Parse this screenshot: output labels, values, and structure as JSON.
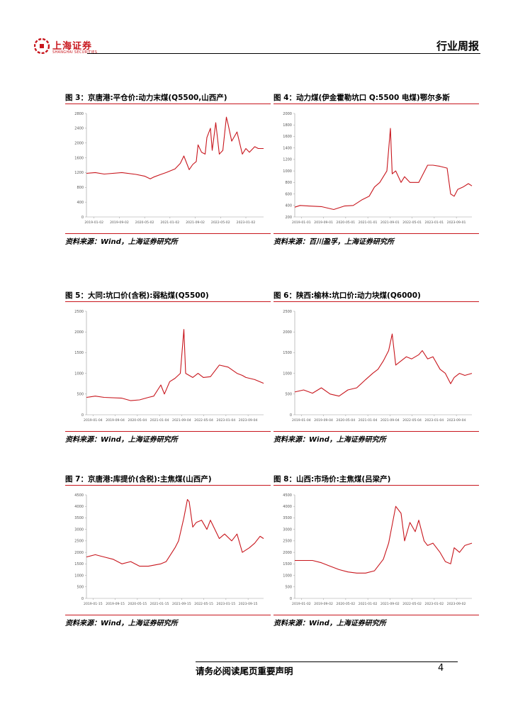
{
  "header": {
    "logo_text": "上海证券",
    "logo_subtext": "SHANGHAI SECURITIES",
    "doc_type": "行业周报",
    "brand_color": "#c8161d"
  },
  "figures": [
    {
      "title": "图 3：京唐港:平仓价:动力末煤(Q5500,山西产)",
      "source": "资料来源：Wind，上海证券研究所"
    },
    {
      "title": "图 4：动力煤(伊金霍勒坑口 Q:5500 电煤)鄂尔多斯",
      "source": "资料来源：百川盈孚，上海证券研究所"
    },
    {
      "title": "图 5：大同:坑口价(含税):弱粘煤(Q5500)",
      "source": "资料来源：Wind，上海证券研究所"
    },
    {
      "title": "图 6：陕西:榆林:坑口价:动力块煤(Q6000)",
      "source": "资料来源：Wind，上海证券研究所"
    },
    {
      "title": "图 7：京唐港:库提价(含税):主焦煤(山西产)",
      "source": "资料来源：Wind，上海证券研究所"
    },
    {
      "title": "图 8：山西:市场价:主焦煤(吕梁产)",
      "source": "资料来源：Wind，上海证券研究所"
    }
  ],
  "chart_data": [
    {
      "type": "line",
      "title": "京唐港:平仓价:动力末煤(Q5500,山西产)",
      "ylim": [
        0,
        2800
      ],
      "yticks": [
        "2800",
        "2400",
        "2000",
        "1600",
        "1200",
        "800",
        "400",
        "0"
      ],
      "xticks": [
        "2019-01-02",
        "2019-09-02",
        "2020-05-02",
        "2021-01-02",
        "2021-09-02",
        "2022-05-02",
        "2023-01-02"
      ],
      "series": [
        {
          "name": "价格",
          "color": "#c8161d",
          "x": [
            0,
            0.05,
            0.1,
            0.2,
            0.28,
            0.33,
            0.36,
            0.38,
            0.42,
            0.45,
            0.5,
            0.53,
            0.55,
            0.58,
            0.6,
            0.62,
            0.63,
            0.65,
            0.67,
            0.68,
            0.7,
            0.71,
            0.73,
            0.75,
            0.77,
            0.79,
            0.8,
            0.82,
            0.85,
            0.88,
            0.9,
            0.92,
            0.95,
            0.97,
            1.0
          ],
          "y": [
            1180,
            1200,
            1160,
            1200,
            1150,
            1100,
            1030,
            1080,
            1150,
            1200,
            1300,
            1450,
            1650,
            1280,
            1420,
            1500,
            1950,
            1750,
            1700,
            2150,
            2400,
            1800,
            2550,
            1700,
            1800,
            2700,
            2500,
            2050,
            2300,
            1700,
            1850,
            1750,
            1900,
            1850,
            1850
          ]
        }
      ]
    },
    {
      "type": "line",
      "title": "动力煤(伊金霍勒坑口 Q:5500 电煤)鄂尔多斯",
      "ylim": [
        200,
        2000
      ],
      "yticks": [
        "2000",
        "1800",
        "1600",
        "1400",
        "1200",
        "1000",
        "800",
        "600",
        "400",
        "200"
      ],
      "xticks": [
        "2019-01-01",
        "2019-09-01",
        "2020-05-01",
        "2021-01-01",
        "2021-09-01",
        "2022-05-01",
        "2023-01-01",
        "2023-09-01"
      ],
      "series": [
        {
          "name": "价格",
          "color": "#c8161d",
          "x": [
            0,
            0.03,
            0.08,
            0.15,
            0.22,
            0.28,
            0.33,
            0.38,
            0.42,
            0.45,
            0.48,
            0.5,
            0.52,
            0.54,
            0.55,
            0.57,
            0.6,
            0.62,
            0.65,
            0.7,
            0.75,
            0.78,
            0.82,
            0.86,
            0.88,
            0.9,
            0.92,
            0.95,
            0.98,
            1.0
          ],
          "y": [
            370,
            400,
            390,
            380,
            330,
            390,
            400,
            500,
            560,
            720,
            800,
            900,
            1000,
            1740,
            950,
            1000,
            800,
            900,
            800,
            800,
            1100,
            1100,
            1080,
            1050,
            600,
            560,
            680,
            720,
            780,
            740
          ]
        }
      ]
    },
    {
      "type": "line",
      "title": "大同:坑口价(含税):弱粘煤(Q5500)",
      "ylim": [
        0,
        2500
      ],
      "yticks": [
        "2500",
        "2000",
        "1500",
        "1000",
        "500",
        "0"
      ],
      "xticks": [
        "2019-01-04",
        "2019-09-04",
        "2020-05-04",
        "2021-01-04",
        "2021-09-04",
        "2022-05-04",
        "2023-01-04",
        "2023-09-04"
      ],
      "series": [
        {
          "name": "价格",
          "color": "#c8161d",
          "x": [
            0,
            0.05,
            0.1,
            0.2,
            0.25,
            0.3,
            0.35,
            0.38,
            0.42,
            0.44,
            0.47,
            0.5,
            0.53,
            0.55,
            0.56,
            0.58,
            0.6,
            0.63,
            0.66,
            0.7,
            0.75,
            0.8,
            0.85,
            0.88,
            0.9,
            0.95,
            1.0
          ],
          "y": [
            420,
            450,
            420,
            400,
            340,
            360,
            420,
            450,
            720,
            500,
            800,
            880,
            1000,
            2060,
            1000,
            950,
            900,
            1000,
            900,
            920,
            1200,
            1150,
            1000,
            950,
            900,
            850,
            760
          ]
        }
      ]
    },
    {
      "type": "line",
      "title": "陕西:榆林:坑口价:动力块煤(Q6000)",
      "ylim": [
        0,
        2500
      ],
      "yticks": [
        "2500",
        "2000",
        "1500",
        "1000",
        "500",
        "0"
      ],
      "xticks": [
        "2019-01-04",
        "2019-09-04",
        "2020-05-04",
        "2021-01-04",
        "2021-09-04",
        "2022-05-04",
        "2023-01-04",
        "2023-09-04"
      ],
      "series": [
        {
          "name": "价格",
          "color": "#c8161d",
          "x": [
            0,
            0.05,
            0.1,
            0.15,
            0.2,
            0.25,
            0.3,
            0.35,
            0.4,
            0.44,
            0.47,
            0.5,
            0.53,
            0.55,
            0.57,
            0.6,
            0.63,
            0.66,
            0.7,
            0.72,
            0.75,
            0.78,
            0.82,
            0.85,
            0.88,
            0.9,
            0.93,
            0.96,
            1.0
          ],
          "y": [
            550,
            600,
            520,
            650,
            500,
            450,
            600,
            650,
            850,
            1000,
            1100,
            1300,
            1550,
            1950,
            1200,
            1300,
            1400,
            1350,
            1450,
            1550,
            1350,
            1400,
            1100,
            1000,
            750,
            900,
            1000,
            950,
            1000
          ]
        }
      ]
    },
    {
      "type": "line",
      "title": "京唐港:库提价(含税):主焦煤(山西产)",
      "ylim": [
        0,
        4500
      ],
      "yticks": [
        "4500",
        "4000",
        "3500",
        "3000",
        "2500",
        "2000",
        "1500",
        "1000",
        "500",
        "0"
      ],
      "xticks": [
        "2019-01-15",
        "2019-09-15",
        "2020-05-15",
        "2021-01-15",
        "2021-09-15",
        "2022-05-15",
        "2023-01-15",
        "2023-09-15"
      ],
      "series": [
        {
          "name": "价格",
          "color": "#c8161d",
          "x": [
            0,
            0.05,
            0.1,
            0.15,
            0.2,
            0.25,
            0.3,
            0.35,
            0.42,
            0.45,
            0.5,
            0.52,
            0.55,
            0.57,
            0.58,
            0.6,
            0.62,
            0.65,
            0.68,
            0.7,
            0.75,
            0.78,
            0.82,
            0.85,
            0.88,
            0.92,
            0.95,
            0.98,
            1.0
          ],
          "y": [
            1800,
            1900,
            1800,
            1700,
            1500,
            1600,
            1400,
            1400,
            1500,
            1600,
            2200,
            2500,
            3500,
            4300,
            4200,
            3100,
            3300,
            3400,
            3000,
            3400,
            2600,
            2800,
            2500,
            2800,
            2000,
            2200,
            2400,
            2700,
            2600
          ]
        }
      ]
    },
    {
      "type": "line",
      "title": "山西:市场价:主焦煤(吕梁产)",
      "ylim": [
        0,
        4500
      ],
      "yticks": [
        "4500",
        "4000",
        "3500",
        "3000",
        "2500",
        "2000",
        "1500",
        "1000",
        "500",
        "0"
      ],
      "xticks": [
        "2019-01-02",
        "2019-09-02",
        "2020-05-02",
        "2021-01-02",
        "2021-09-02",
        "2022-05-02",
        "2023-01-02",
        "2023-09-02"
      ],
      "series": [
        {
          "name": "价格",
          "color": "#c8161d",
          "x": [
            0,
            0.05,
            0.1,
            0.15,
            0.2,
            0.25,
            0.3,
            0.35,
            0.4,
            0.45,
            0.5,
            0.53,
            0.55,
            0.57,
            0.6,
            0.62,
            0.65,
            0.68,
            0.7,
            0.73,
            0.75,
            0.78,
            0.82,
            0.85,
            0.88,
            0.9,
            0.93,
            0.96,
            1.0
          ],
          "y": [
            1650,
            1650,
            1650,
            1550,
            1400,
            1250,
            1150,
            1100,
            1100,
            1200,
            1700,
            2400,
            3200,
            4000,
            3700,
            2500,
            3300,
            2900,
            3400,
            2500,
            2300,
            2400,
            2000,
            1600,
            1500,
            2200,
            2000,
            2300,
            2400
          ]
        }
      ]
    }
  ],
  "footer": {
    "disclaimer": "请务必阅读尾页重要声明",
    "page_number": "4"
  }
}
